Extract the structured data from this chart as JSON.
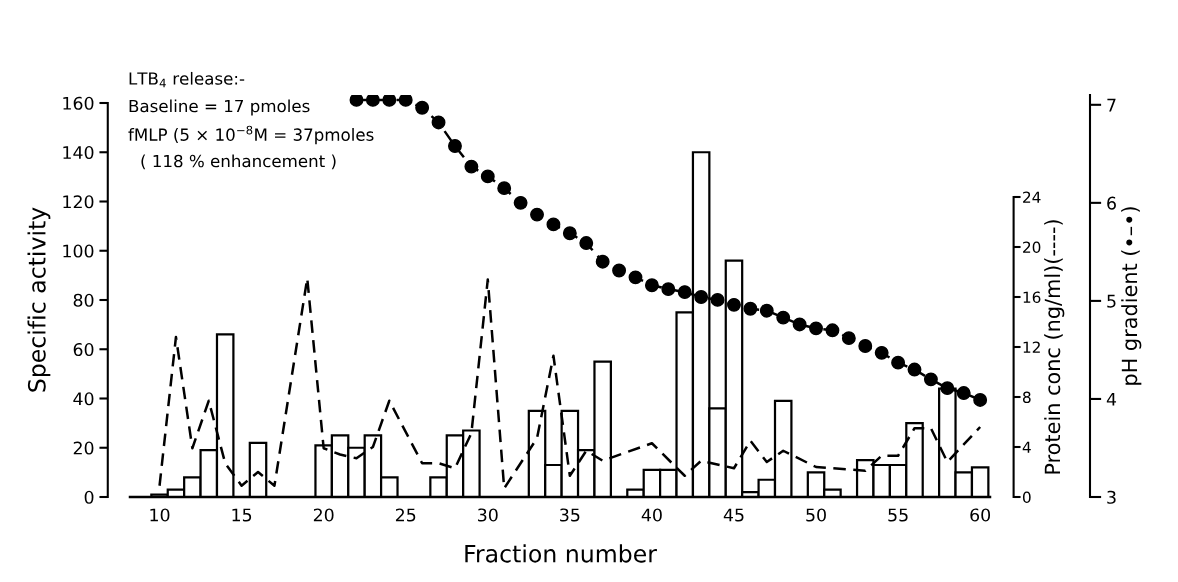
{
  "chart_data": {
    "type": "bar",
    "xlabel": "Fraction number",
    "ylabel": "Specific activity",
    "y2label": "Protein conc (ng/ml)(----)",
    "y3label": "pH gradient (•–•)",
    "annotations": [
      "LTB$_{4}$ release:-",
      "Baseline = 17 pmoles",
      "fMLP (5 × 10$^{−8}$M = 37pmoles",
      "( 118 % enhancement )"
    ],
    "xlim": [
      8.2,
      60.6
    ],
    "xticks": [
      10,
      15,
      20,
      25,
      30,
      35,
      40,
      45,
      50,
      55,
      60
    ],
    "ylim": [
      0,
      160
    ],
    "yticks": [
      0,
      20,
      40,
      60,
      80,
      100,
      120,
      140,
      160
    ],
    "y2lim": [
      0,
      24
    ],
    "y2ticks": [
      0,
      4,
      8,
      12,
      16,
      20,
      24
    ],
    "y3lim": [
      3,
      7.1
    ],
    "y3ticks": [
      3,
      4,
      5,
      6,
      7
    ],
    "grid": false,
    "legend": false,
    "series": [
      {
        "axis": "y",
        "color": "#ffffff",
        "x": [
          10,
          11,
          12,
          13,
          14,
          16,
          20,
          21,
          22,
          23,
          24,
          27,
          28,
          29,
          33,
          34,
          35,
          36,
          37,
          39,
          40,
          41,
          42,
          43,
          44,
          45,
          46,
          47,
          48,
          50,
          51,
          53,
          54,
          55,
          56,
          58,
          59,
          60
        ],
        "values": [
          1,
          3,
          8,
          19,
          66,
          22,
          21,
          25,
          20,
          25,
          8,
          8,
          25,
          27,
          35,
          13,
          35,
          19,
          55,
          3,
          11,
          11,
          75,
          140,
          36,
          96,
          2,
          7,
          39,
          10,
          3,
          15,
          13,
          13,
          30,
          44,
          10,
          12
        ]
      },
      {
        "type": "line",
        "axis": "y2",
        "color": "#000000",
        "line_style": "dashed",
        "marker": "none",
        "x": [
          10,
          11,
          12,
          13,
          14,
          15,
          16,
          17,
          19,
          20,
          21,
          22,
          23,
          24,
          26,
          27,
          28,
          29,
          30,
          31,
          33,
          34,
          35,
          36,
          37,
          40,
          42,
          43,
          45,
          46,
          47,
          48,
          50,
          53,
          54,
          55,
          56,
          57,
          58,
          60
        ],
        "values": [
          0.9,
          12.8,
          3.9,
          7.7,
          2.7,
          0.9,
          2,
          0.9,
          17.5,
          3.9,
          3.4,
          3.1,
          4,
          7.7,
          2.7,
          2.7,
          2.3,
          5.1,
          17.4,
          0.7,
          4.7,
          11.3,
          1.7,
          3.7,
          2.9,
          4.3,
          1.7,
          2.9,
          2.3,
          4.5,
          2.8,
          3.7,
          2.4,
          2.1,
          3.3,
          3.3,
          5.5,
          5.5,
          2.8,
          5.6
        ]
      },
      {
        "type": "line",
        "axis": "y3",
        "color": "#000000",
        "line_style": "dashed",
        "marker": "circle",
        "x": [
          22,
          23,
          24,
          25,
          26,
          27,
          28,
          29,
          30,
          31,
          32,
          33,
          34,
          35,
          36,
          37,
          38,
          39,
          40,
          41,
          42,
          43,
          44,
          45,
          46,
          47,
          48,
          49,
          50,
          51,
          52,
          53,
          54,
          55,
          56,
          57,
          58,
          59,
          60
        ],
        "values": [
          7.05,
          7.05,
          7.05,
          7.05,
          6.97,
          6.82,
          6.58,
          6.37,
          6.27,
          6.15,
          6.0,
          5.88,
          5.78,
          5.69,
          5.59,
          5.4,
          5.31,
          5.24,
          5.16,
          5.12,
          5.09,
          5.04,
          5.01,
          4.96,
          4.92,
          4.9,
          4.83,
          4.76,
          4.72,
          4.7,
          4.62,
          4.54,
          4.47,
          4.37,
          4.3,
          4.2,
          4.11,
          4.06,
          3.99
        ]
      }
    ]
  }
}
